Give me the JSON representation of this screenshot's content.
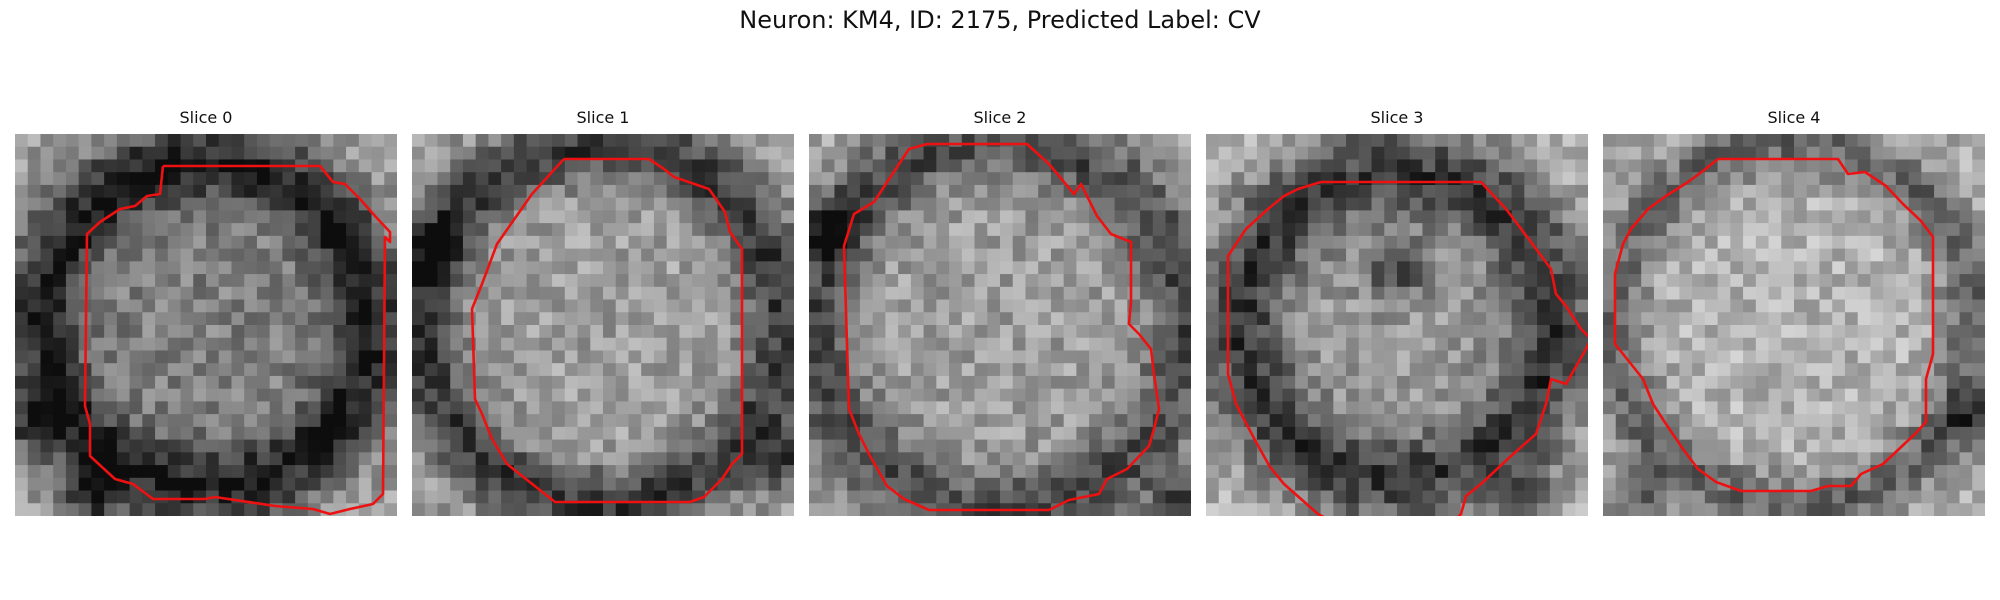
{
  "figure": {
    "title": "Neuron: KM4, ID: 2175, Predicted Label: CV"
  },
  "panels": [
    {
      "title": "Slice 0"
    },
    {
      "title": "Slice 1"
    },
    {
      "title": "Slice 2"
    },
    {
      "title": "Slice 3"
    },
    {
      "title": "Slice 4"
    }
  ],
  "contour_color": "#ee1111"
}
